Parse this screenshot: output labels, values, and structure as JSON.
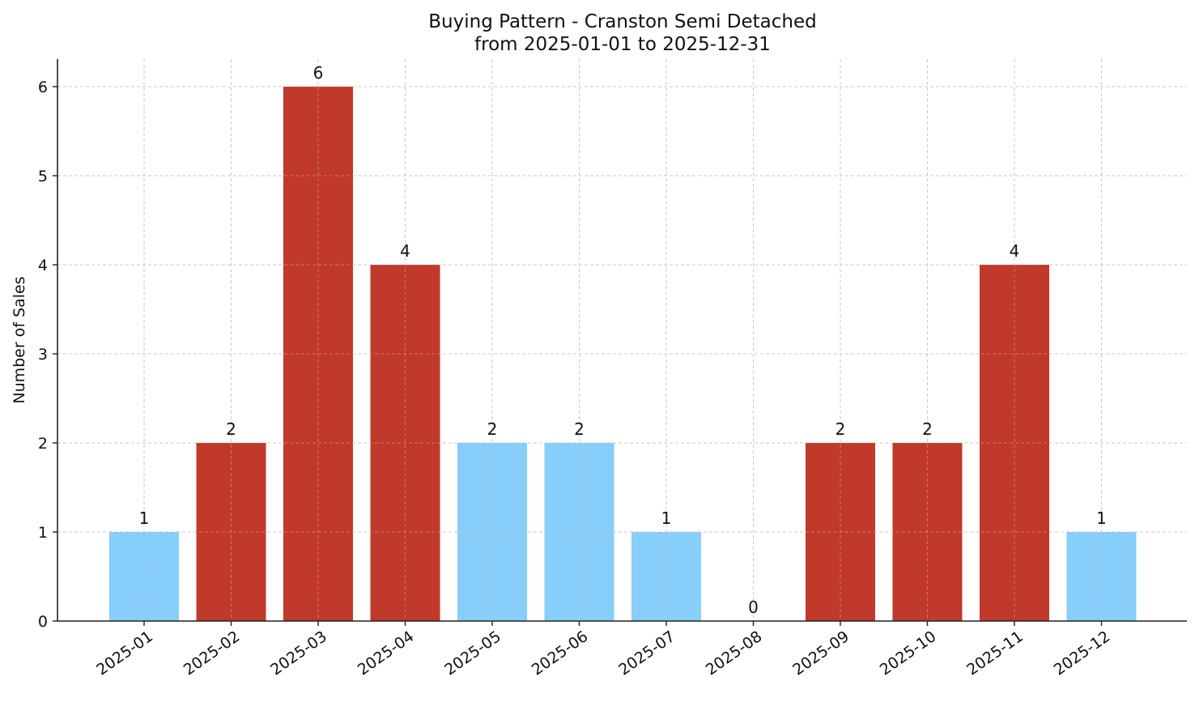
{
  "chart_data": {
    "type": "bar",
    "title": "Buying Pattern - Cranston Semi Detached",
    "subtitle": "from 2025-01-01 to 2025-12-31",
    "xlabel": "",
    "ylabel": "Number of Sales",
    "ylim": [
      0,
      6.3
    ],
    "yticks": [
      0,
      1,
      2,
      3,
      4,
      5,
      6
    ],
    "grid": true,
    "legend": null,
    "categories": [
      "2025-01",
      "2025-02",
      "2025-03",
      "2025-04",
      "2025-05",
      "2025-06",
      "2025-07",
      "2025-08",
      "2025-09",
      "2025-10",
      "2025-11",
      "2025-12"
    ],
    "values": [
      1,
      2,
      6,
      4,
      2,
      2,
      1,
      0,
      2,
      2,
      4,
      1
    ],
    "bar_colors": [
      "#87CEFA",
      "#C0392B",
      "#C0392B",
      "#C0392B",
      "#87CEFA",
      "#87CEFA",
      "#87CEFA",
      "#87CEFA",
      "#C0392B",
      "#C0392B",
      "#C0392B",
      "#87CEFA"
    ],
    "data_labels": [
      "1",
      "2",
      "6",
      "4",
      "2",
      "2",
      "1",
      "0",
      "2",
      "2",
      "4",
      "1"
    ],
    "colors": {
      "high": "#C0392B",
      "low": "#87CEFA",
      "grid": "#cccccc",
      "axis": "#222222"
    }
  }
}
